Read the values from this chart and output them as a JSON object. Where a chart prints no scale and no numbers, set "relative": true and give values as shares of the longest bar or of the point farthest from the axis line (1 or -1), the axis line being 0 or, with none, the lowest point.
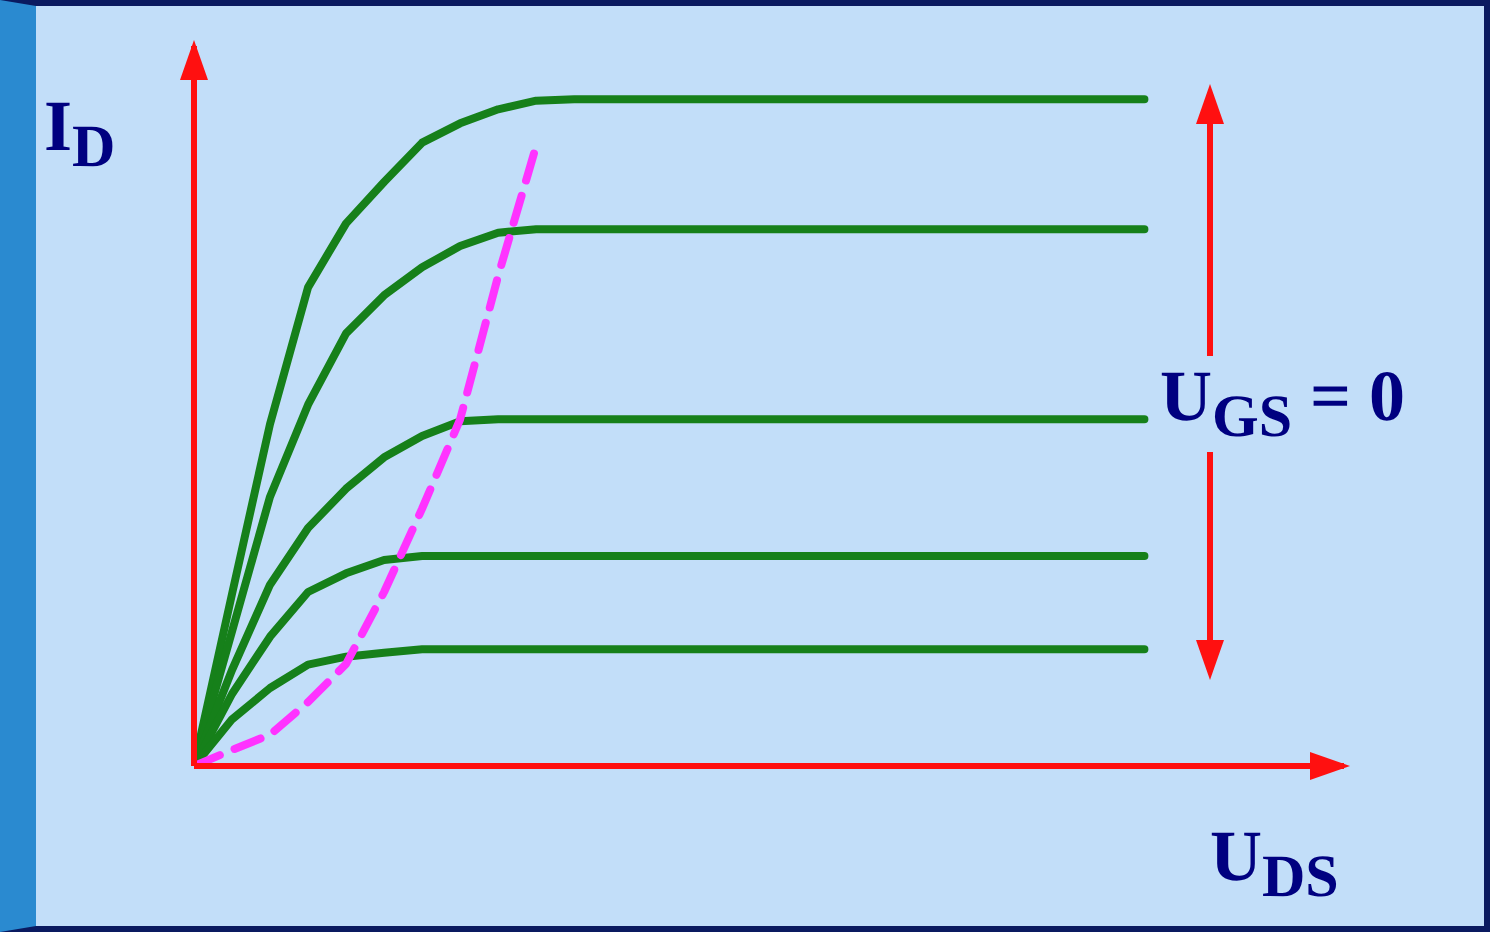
{
  "chart_data": {
    "type": "line",
    "relative": true,
    "xlabel": "U$_{DS}$",
    "ylabel": "I$_{D}$",
    "marker": "none",
    "annotations": [
      "U$_{GS}$ = 0"
    ],
    "categories": [
      null,
      null,
      null,
      null,
      null,
      null,
      null,
      null,
      null,
      null,
      null,
      null,
      null,
      null,
      null,
      null,
      null,
      null,
      null,
      null,
      null,
      null,
      null,
      null,
      null,
      null
    ],
    "series": [
      {
        "color": "#16801a",
        "values": [
          0,
          0.258,
          0.513,
          0.718,
          0.814,
          0.876,
          0.935,
          0.964,
          0.985,
          0.998,
          1,
          1,
          1,
          1,
          1,
          1,
          1,
          1,
          1,
          1,
          1,
          1,
          1,
          1,
          1,
          1
        ]
      },
      {
        "color": "#16801a",
        "values": [
          0,
          0.202,
          0.404,
          0.542,
          0.649,
          0.706,
          0.748,
          0.78,
          0.8,
          0.805,
          0.805,
          0.805,
          0.805,
          0.805,
          0.805,
          0.805,
          0.805,
          0.805,
          0.805,
          0.805,
          0.805,
          0.805,
          0.805,
          0.805,
          0.805,
          0.805
        ]
      },
      {
        "color": "#16801a",
        "values": [
          0,
          0.144,
          0.272,
          0.357,
          0.416,
          0.463,
          0.495,
          0.517,
          0.52,
          0.52,
          0.52,
          0.52,
          0.52,
          0.52,
          0.52,
          0.52,
          0.52,
          0.52,
          0.52,
          0.52,
          0.52,
          0.52,
          0.52,
          0.52,
          0.52,
          0.52
        ]
      },
      {
        "color": "#16801a",
        "values": [
          0,
          0.108,
          0.194,
          0.261,
          0.289,
          0.309,
          0.315,
          0.315,
          0.315,
          0.315,
          0.315,
          0.315,
          0.315,
          0.315,
          0.315,
          0.315,
          0.315,
          0.315,
          0.315,
          0.315,
          0.315,
          0.315,
          0.315,
          0.315,
          0.315,
          0.315
        ]
      },
      {
        "color": "#16801a",
        "values": [
          0,
          0.07,
          0.117,
          0.152,
          0.164,
          0.17,
          0.175,
          0.175,
          0.175,
          0.175,
          0.175,
          0.175,
          0.175,
          0.175,
          0.175,
          0.175,
          0.175,
          0.175,
          0.175,
          0.175,
          0.175,
          0.175,
          0.175,
          0.175,
          0.175,
          0.175
        ]
      },
      {
        "color": "#ff33ff",
        "line_style": "dashed",
        "values": [
          0,
          0.024,
          0.047,
          0.096,
          0.153,
          0.261,
          0.386,
          0.52,
          0.735,
          0.93,
          null,
          null,
          null,
          null,
          null,
          null,
          null,
          null,
          null,
          null,
          null,
          null,
          null,
          null,
          null,
          null
        ]
      }
    ]
  }
}
